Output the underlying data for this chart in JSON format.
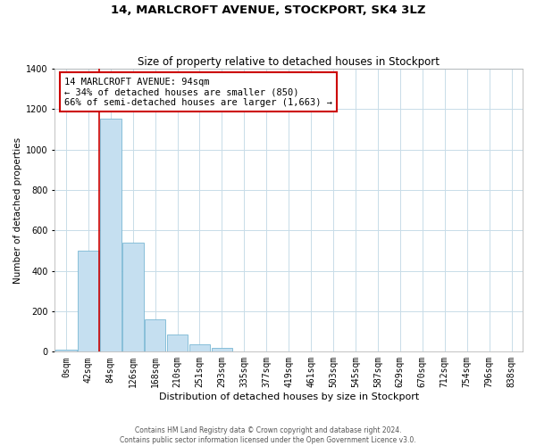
{
  "title": "14, MARLCROFT AVENUE, STOCKPORT, SK4 3LZ",
  "subtitle": "Size of property relative to detached houses in Stockport",
  "xlabel": "Distribution of detached houses by size in Stockport",
  "ylabel": "Number of detached properties",
  "bar_labels": [
    "0sqm",
    "42sqm",
    "84sqm",
    "126sqm",
    "168sqm",
    "210sqm",
    "251sqm",
    "293sqm",
    "335sqm",
    "377sqm",
    "419sqm",
    "461sqm",
    "503sqm",
    "545sqm",
    "587sqm",
    "629sqm",
    "670sqm",
    "712sqm",
    "754sqm",
    "796sqm",
    "838sqm"
  ],
  "bar_values": [
    10,
    500,
    1155,
    540,
    160,
    85,
    35,
    20,
    0,
    0,
    0,
    0,
    0,
    0,
    0,
    0,
    0,
    0,
    0,
    0,
    0
  ],
  "bar_color": "#c5dff0",
  "bar_edge_color": "#7ab8d4",
  "property_line_bar_index": 2,
  "property_line_color": "#cc0000",
  "ylim": [
    0,
    1400
  ],
  "yticks": [
    0,
    200,
    400,
    600,
    800,
    1000,
    1200,
    1400
  ],
  "annotation_title": "14 MARLCROFT AVENUE: 94sqm",
  "annotation_line1": "← 34% of detached houses are smaller (850)",
  "annotation_line2": "66% of semi-detached houses are larger (1,663) →",
  "annotation_box_color": "#ffffff",
  "annotation_border_color": "#cc0000",
  "footer_line1": "Contains HM Land Registry data © Crown copyright and database right 2024.",
  "footer_line2": "Contains public sector information licensed under the Open Government Licence v3.0.",
  "background_color": "#ffffff",
  "grid_color": "#c8dce8",
  "title_fontsize": 9.5,
  "subtitle_fontsize": 8.5,
  "ylabel_fontsize": 7.5,
  "xlabel_fontsize": 8,
  "tick_fontsize": 7,
  "annotation_fontsize": 7.5,
  "footer_fontsize": 5.5
}
